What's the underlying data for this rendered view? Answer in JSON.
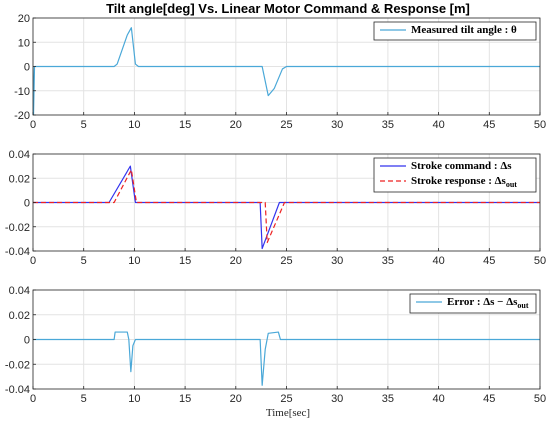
{
  "title": "Tilt angle[deg] Vs. Linear Motor Command & Response [m]",
  "xlabel": "Time[sec]",
  "colors": {
    "cyan": "#4aa8d8",
    "blue": "#3333ee",
    "red": "#ee2222",
    "grid": "#e3e3e3",
    "axis": "#262626"
  },
  "chart_data": [
    {
      "type": "line",
      "xlim": [
        0,
        50
      ],
      "ylim": [
        -20,
        20
      ],
      "xticks": [
        0,
        5,
        10,
        15,
        20,
        25,
        30,
        35,
        40,
        45,
        50
      ],
      "yticks": [
        -20,
        -10,
        0,
        10,
        20
      ],
      "grid": true,
      "legend_position": "top-right",
      "series": [
        {
          "name": "Measured tilt angle : θ",
          "color": "#4aa8d8",
          "dash": "none",
          "points": [
            [
              0,
              0
            ],
            [
              0.05,
              -20
            ],
            [
              0.15,
              0
            ],
            [
              8.0,
              0
            ],
            [
              8.3,
              1
            ],
            [
              9.3,
              13
            ],
            [
              9.7,
              16
            ],
            [
              10.1,
              1
            ],
            [
              10.4,
              0
            ],
            [
              22.6,
              0
            ],
            [
              22.8,
              -4
            ],
            [
              23.2,
              -12
            ],
            [
              23.8,
              -9
            ],
            [
              24.6,
              -1
            ],
            [
              25.0,
              0
            ],
            [
              50,
              0
            ]
          ]
        }
      ]
    },
    {
      "type": "line",
      "xlim": [
        0,
        50
      ],
      "ylim": [
        -0.04,
        0.04
      ],
      "xticks": [
        0,
        5,
        10,
        15,
        20,
        25,
        30,
        35,
        40,
        45,
        50
      ],
      "yticks": [
        -0.04,
        -0.02,
        0,
        0.02,
        0.04
      ],
      "grid": true,
      "legend_position": "top-right",
      "series": [
        {
          "name": "Stroke command : Δs",
          "name_main": "Stroke command : ",
          "name_sym": "Δs",
          "name_sub": "",
          "color": "#3333ee",
          "dash": "none",
          "points": [
            [
              0,
              0
            ],
            [
              7.5,
              0
            ],
            [
              9.6,
              0.03
            ],
            [
              10.1,
              0
            ],
            [
              22.4,
              0
            ],
            [
              22.6,
              -0.038
            ],
            [
              24.3,
              0
            ],
            [
              50,
              0
            ]
          ]
        },
        {
          "name": "Stroke response : Δs_out",
          "name_main": "Stroke response : ",
          "name_sym": "Δs",
          "name_sub": "out",
          "color": "#ee2222",
          "dash": "5,3",
          "points": [
            [
              0,
              0
            ],
            [
              8.0,
              0
            ],
            [
              9.7,
              0.027
            ],
            [
              10.2,
              0
            ],
            [
              22.9,
              0
            ],
            [
              23.1,
              -0.033
            ],
            [
              24.8,
              0
            ],
            [
              50,
              0
            ]
          ]
        }
      ]
    },
    {
      "type": "line",
      "xlim": [
        0,
        50
      ],
      "ylim": [
        -0.04,
        0.04
      ],
      "xticks": [
        0,
        5,
        10,
        15,
        20,
        25,
        30,
        35,
        40,
        45,
        50
      ],
      "yticks": [
        -0.04,
        -0.02,
        0,
        0.02,
        0.04
      ],
      "grid": true,
      "legend_position": "top-right",
      "series": [
        {
          "name": "Error : Δs − Δs_out",
          "name_main": "Error : ",
          "name_sym": "Δs − Δs",
          "name_sub": "out",
          "color": "#4aa8d8",
          "dash": "none",
          "points": [
            [
              0,
              0
            ],
            [
              8.0,
              0
            ],
            [
              8.1,
              0.006
            ],
            [
              9.3,
              0.006
            ],
            [
              9.45,
              0.0
            ],
            [
              9.65,
              -0.026
            ],
            [
              9.85,
              -0.005
            ],
            [
              10.1,
              0
            ],
            [
              22.4,
              0
            ],
            [
              22.6,
              -0.037
            ],
            [
              22.9,
              -0.008
            ],
            [
              23.2,
              0.005
            ],
            [
              24.2,
              0.006
            ],
            [
              24.4,
              0
            ],
            [
              50,
              0
            ]
          ]
        }
      ]
    }
  ]
}
